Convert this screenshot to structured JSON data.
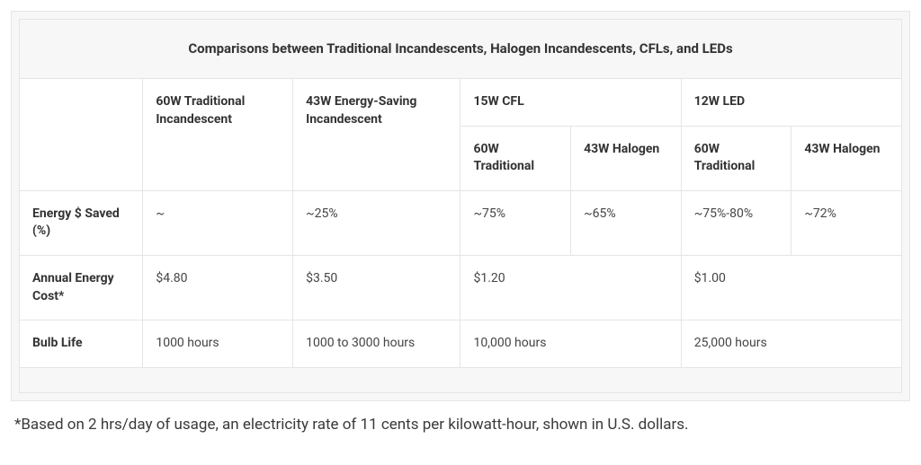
{
  "table": {
    "title": "Comparisons between Traditional Incandescents, Halogen Incandescents, CFLs, and LEDs",
    "columns": {
      "col1_blank": "",
      "col2": "60W Traditional Incandescent",
      "col3": "43W Energy-Saving Incandescent",
      "col4_group": "15W CFL",
      "col5_group": "12W LED",
      "sub_60w_trad_a": "60W Traditional",
      "sub_43w_halo_a": "43W Halogen",
      "sub_60w_trad_b": "60W Traditional",
      "sub_43w_halo_b": "43W Halogen"
    },
    "rows": {
      "energy_saved": {
        "label": "Energy $ Saved (%)",
        "col2": "~",
        "col3": "~25%",
        "col4": "~75%",
        "col5": "~65%",
        "col6": "~75%-80%",
        "col7": "~72%"
      },
      "annual_cost": {
        "label": "Annual Energy Cost*",
        "col2": "$4.80",
        "col3": "$3.50",
        "col4_5": "$1.20",
        "col6_7": "$1.00"
      },
      "bulb_life": {
        "label": "Bulb Life",
        "col2": "1000 hours",
        "col3": "1000 to 3000 hours",
        "col4_5": "10,000 hours",
        "col6_7": "25,000 hours"
      }
    }
  },
  "footnote": "*Based on 2 hrs/day of usage, an electricity rate of 11 cents per kilowatt-hour, shown in U.S. dollars."
}
